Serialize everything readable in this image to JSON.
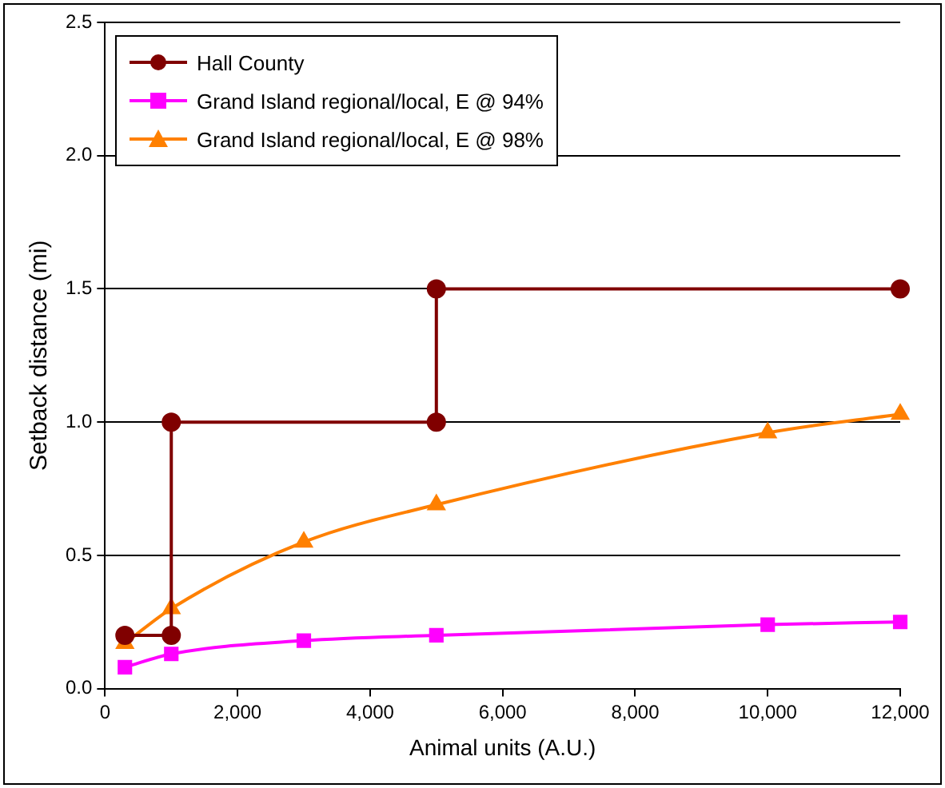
{
  "chart_data": {
    "type": "line",
    "xlabel": "Animal units (A.U.)",
    "ylabel": "Setback distance (mi)",
    "xlim": [
      0,
      12000
    ],
    "xticks": [
      0,
      {
        "value": 2000,
        "label": "2,000"
      },
      {
        "value": 4000,
        "label": "4,000"
      },
      {
        "value": 6000,
        "label": "6,000"
      },
      {
        "value": 8000,
        "label": "8,000"
      },
      {
        "value": 10000,
        "label": "10,000"
      },
      {
        "value": 12000,
        "label": "12,000"
      }
    ],
    "ylim": [
      0,
      2.5
    ],
    "yticks": [
      {
        "value": 0,
        "label": "0.0"
      },
      0.5,
      {
        "value": 1,
        "label": "1.0"
      },
      1.5,
      {
        "value": 2,
        "label": "2.0"
      },
      2.5
    ],
    "grid": "y",
    "legend": "top left",
    "series": [
      {
        "name": "Hall County",
        "color": "#800000",
        "marker": "circle",
        "x": [
          300,
          1000,
          1000,
          5000,
          5000,
          12000
        ],
        "values": [
          0.2,
          0.2,
          1.0,
          1.0,
          1.5,
          1.5
        ]
      },
      {
        "name": "Grand Island regional/local, E @ 94%",
        "color": "#ff00ff",
        "marker": "square",
        "x": [
          300,
          1000,
          3000,
          5000,
          10000,
          12000
        ],
        "values": [
          0.08,
          0.13,
          0.18,
          0.2,
          0.24,
          0.25
        ]
      },
      {
        "name": "Grand Island regional/local, E @ 98%",
        "color": "#ff8000",
        "marker": "triangle",
        "x": [
          300,
          1000,
          3000,
          5000,
          10000,
          12000
        ],
        "values": [
          0.17,
          0.3,
          0.55,
          0.69,
          0.96,
          1.03
        ]
      }
    ]
  }
}
